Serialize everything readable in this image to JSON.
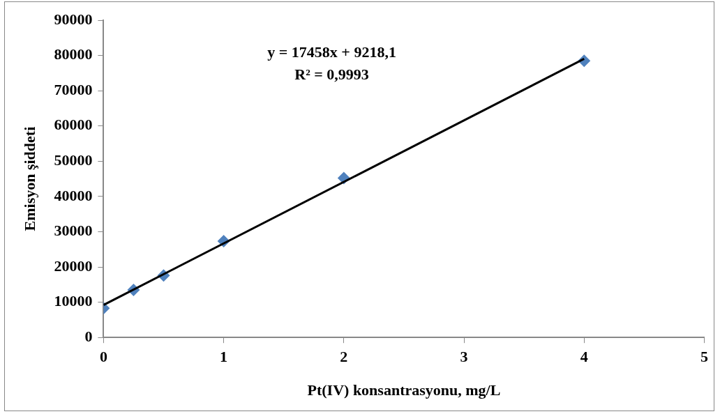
{
  "chart_data": {
    "type": "scatter",
    "xlabel": "Pt(IV) konsantrasyonu, mg/L",
    "ylabel": "Emisyon şiddeti",
    "x": [
      0,
      0.25,
      0.5,
      1,
      2,
      4
    ],
    "series": [
      {
        "color": "#4f81bd",
        "marker": "diamond",
        "values": [
          8300,
          13500,
          17600,
          27300,
          45200,
          78500
        ]
      },
      {
        "type": "line",
        "color": "#000000",
        "marker": "none",
        "x": [
          0,
          4
        ],
        "values": [
          9218,
          79050
        ]
      }
    ],
    "annotations": [
      "y = 17458x + 9218,1",
      "R² = 0,9993"
    ],
    "xlim": [
      0,
      5
    ],
    "xticks": [
      0,
      1,
      2,
      3,
      4,
      5
    ],
    "ylim": [
      0,
      90000
    ],
    "yticks": [
      0,
      10000,
      20000,
      30000,
      40000,
      50000,
      60000,
      70000,
      80000,
      90000
    ],
    "grid": false,
    "legend": false
  }
}
